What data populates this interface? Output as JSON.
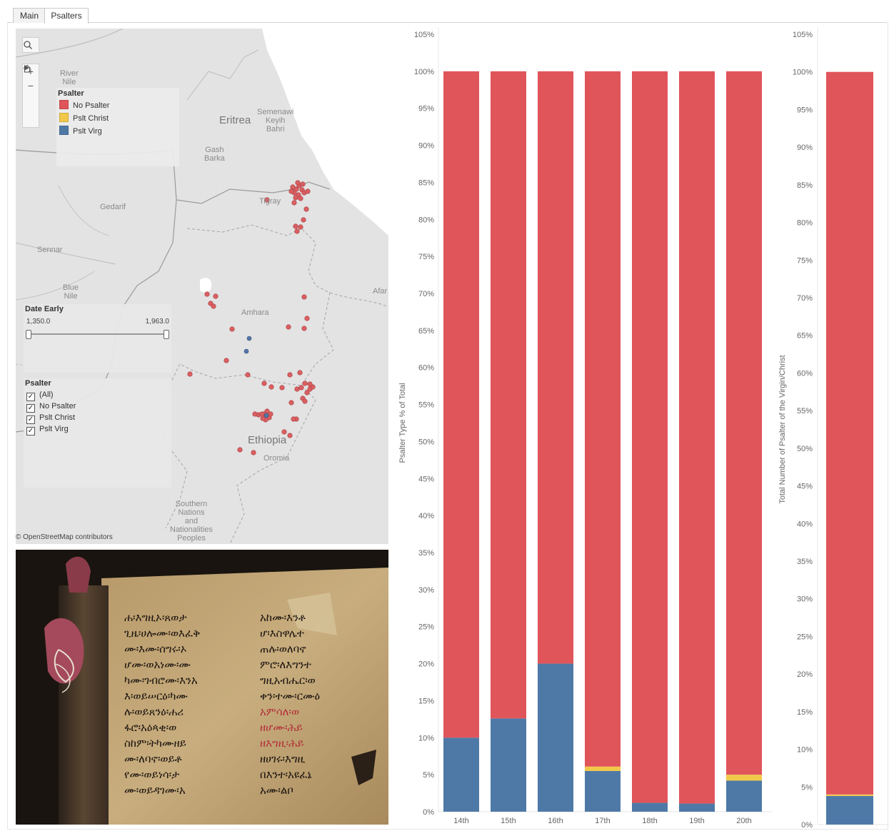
{
  "tabs": [
    {
      "label": "Main",
      "active": false
    },
    {
      "label": "Psalters",
      "active": true
    }
  ],
  "map": {
    "labels": {
      "river_nile": "River\nNile",
      "eritrea": "Eritrea",
      "semenawi": "Semenawi\nKeyih\nBahri",
      "gash_barka": "Gash\nBarka",
      "gedarif": "Gedarif",
      "tigray": "Tigray",
      "sennar": "Sennar",
      "blue_nile": "Blue\nNile",
      "afar": "Afar",
      "amhara": "Amhara",
      "ethiopia": "Ethiopia",
      "oromia": "Oromia",
      "southern": "Southern\nNations\nand\nNationalities\nPeoples"
    },
    "copyright": "© OpenStreetMap contributors",
    "legend": {
      "title": "Psalter",
      "items": [
        {
          "label": "No Psalter",
          "color": "#e0555a"
        },
        {
          "label": "Pslt Christ",
          "color": "#f1c84a"
        },
        {
          "label": "Pslt Virg",
          "color": "#4e79a7"
        }
      ]
    },
    "date_filter": {
      "title": "Date Early",
      "min_label": "1,350.0",
      "max_label": "1,963.0"
    },
    "psalter_filter": {
      "title": "Psalter",
      "options": [
        {
          "label": "(All)",
          "checked": true
        },
        {
          "label": "No Psalter",
          "checked": true
        },
        {
          "label": "Pslt Christ",
          "checked": true
        },
        {
          "label": "Pslt Virg",
          "checked": true
        }
      ]
    }
  },
  "colors": {
    "no_psalter": "#e0555a",
    "pslt_christ": "#f1c84a",
    "pslt_virg": "#4e79a7"
  },
  "chart_data": [
    {
      "type": "bar",
      "stacked": true,
      "ylabel": "Psalter Type % of Total",
      "categories": [
        "14th",
        "15th",
        "16th",
        "17th",
        "18th",
        "19th",
        "20th"
      ],
      "ylim": [
        0,
        105
      ],
      "yticks": [
        "0%",
        "5%",
        "10%",
        "15%",
        "20%",
        "25%",
        "30%",
        "35%",
        "40%",
        "45%",
        "50%",
        "55%",
        "60%",
        "65%",
        "70%",
        "75%",
        "80%",
        "85%",
        "90%",
        "95%",
        "100%",
        "105%"
      ],
      "series": [
        {
          "name": "Pslt Virg",
          "values": [
            10,
            12.6,
            20,
            5.5,
            1.2,
            1.1,
            4.2
          ]
        },
        {
          "name": "Pslt Christ",
          "values": [
            0,
            0,
            0,
            0.6,
            0,
            0,
            0.8
          ]
        },
        {
          "name": "No Psalter",
          "values": [
            90,
            87.4,
            80,
            93.9,
            98.8,
            98.9,
            95
          ]
        }
      ]
    },
    {
      "type": "bar",
      "stacked": true,
      "ylabel": "Total Number of Psalter of the Virgin/Christ",
      "categories": [
        ""
      ],
      "ylim": [
        0,
        105
      ],
      "yticks": [
        "0%",
        "5%",
        "10%",
        "15%",
        "20%",
        "25%",
        "30%",
        "35%",
        "40%",
        "45%",
        "50%",
        "55%",
        "60%",
        "65%",
        "70%",
        "75%",
        "80%",
        "85%",
        "90%",
        "95%",
        "100%",
        "105%"
      ],
      "series": [
        {
          "name": "Pslt Virg",
          "values": [
            3.8
          ]
        },
        {
          "name": "Pslt Christ",
          "values": [
            0.2
          ]
        },
        {
          "name": "No Psalter",
          "values": [
            96
          ]
        }
      ]
    }
  ],
  "photo": {
    "columns": [
      [
        "ሐ፡እግዚኦ፡ጸወታ",
        "ጊዜ፡ሀሎሙ፡ወእፈቅ",
        "ሙ፡እሙ፡ሰግሩ፡ኦ",
        "ሆሙ፡ወአነሙ፡ሙ",
        "ካሙ፡ገብሮሙ፡እንአ",
        "እ፡ወይሠርዕ፡ካሙ",
        "ሉ፡ወይጸንዕ፡ሐሪ",
        "ፋሮ፡አዕጳቂ፡ወ",
        "ስከም፡ትካሙዘይ",
        "ሙ፡ለባኖ፡ወይቶ",
        "የሙ፡ወይነሳ፡ታ",
        "ሙ፡ወይዳገሙ፡አ"
      ],
      [
        "አከሙ፡እንቶ",
        "ሆ፡እስዋሌተ",
        "ጠሉ፡ወለባኖ",
        "ምሮ፡ለእግንተ",
        "ግዚአብሔር፡ወ",
        "ቀን፡ተሙ፡ርሙዕ",
        "አምሳለ፡ወ",
        "ዘሆሙ፡ሕይ",
        "ዘእግዚ፡ሕይ",
        "ዘሀገሩ፡እግዚ",
        "በእንተ፡አዩፈኔ",
        "አሙ፡ልቦ"
      ]
    ],
    "red_lines": [
      6,
      7,
      8
    ]
  }
}
